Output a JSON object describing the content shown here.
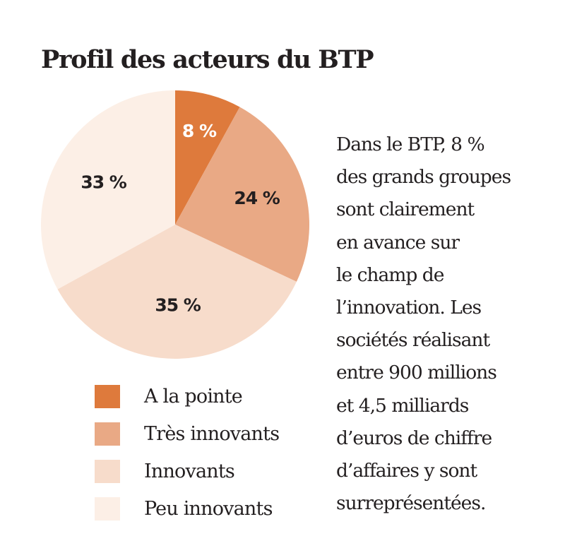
{
  "chart_data": {
    "type": "pie",
    "title": "Profil des acteurs du BTP",
    "slices": [
      {
        "label": "A la pointe",
        "value": 8,
        "value_label": "8 %",
        "color": "#de7a3c"
      },
      {
        "label": "Très innovants",
        "value": 24,
        "value_label": "24 %",
        "color": "#e9a985"
      },
      {
        "label": "Innovants",
        "value": 35,
        "value_label": "35 %",
        "color": "#f7dccb"
      },
      {
        "label": "Peu innovants",
        "value": 33,
        "value_label": "33 %",
        "color": "#fcefe6"
      }
    ],
    "legend_position": "bottom-left",
    "start": "12 o'clock",
    "direction": "clockwise"
  },
  "caption": "Dans le BTP, 8 %\ndes grands groupes\nsont clairement\nen avance sur\nle champ de\nl’innovation. Les\nsociétés réalisant\nentre 900 millions\net 4,5 milliards\nd’euros de chiffre\nd’affaires y sont\nsurreprésentées."
}
